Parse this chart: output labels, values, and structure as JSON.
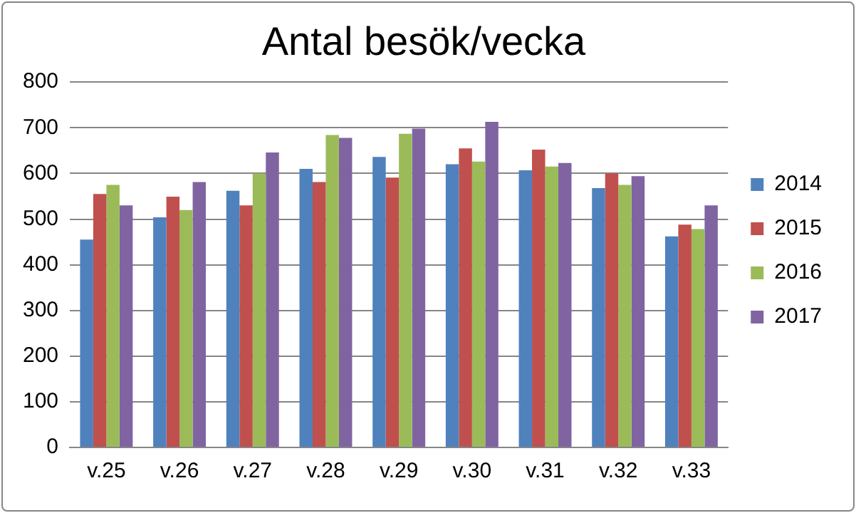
{
  "chart_data": {
    "type": "bar",
    "title": "Antal besök/vecka",
    "categories": [
      "v.25",
      "v.26",
      "v.27",
      "v.28",
      "v.29",
      "v.30",
      "v.31",
      "v.32",
      "v.33"
    ],
    "series": [
      {
        "name": "2014",
        "color": "#4f81bd",
        "values": [
          455,
          504,
          562,
          610,
          636,
          620,
          607,
          568,
          462
        ]
      },
      {
        "name": "2015",
        "color": "#c0504d",
        "values": [
          555,
          549,
          530,
          581,
          591,
          655,
          652,
          600,
          488
        ]
      },
      {
        "name": "2016",
        "color": "#9bbb59",
        "values": [
          575,
          520,
          600,
          684,
          687,
          626,
          615,
          575,
          478
        ]
      },
      {
        "name": "2017",
        "color": "#8064a2",
        "values": [
          530,
          581,
          646,
          678,
          698,
          713,
          623,
          594,
          530
        ]
      }
    ],
    "ylim": [
      0,
      800
    ],
    "yticks": [
      0,
      100,
      200,
      300,
      400,
      500,
      600,
      700,
      800
    ],
    "grid": "y",
    "legend": "right"
  }
}
